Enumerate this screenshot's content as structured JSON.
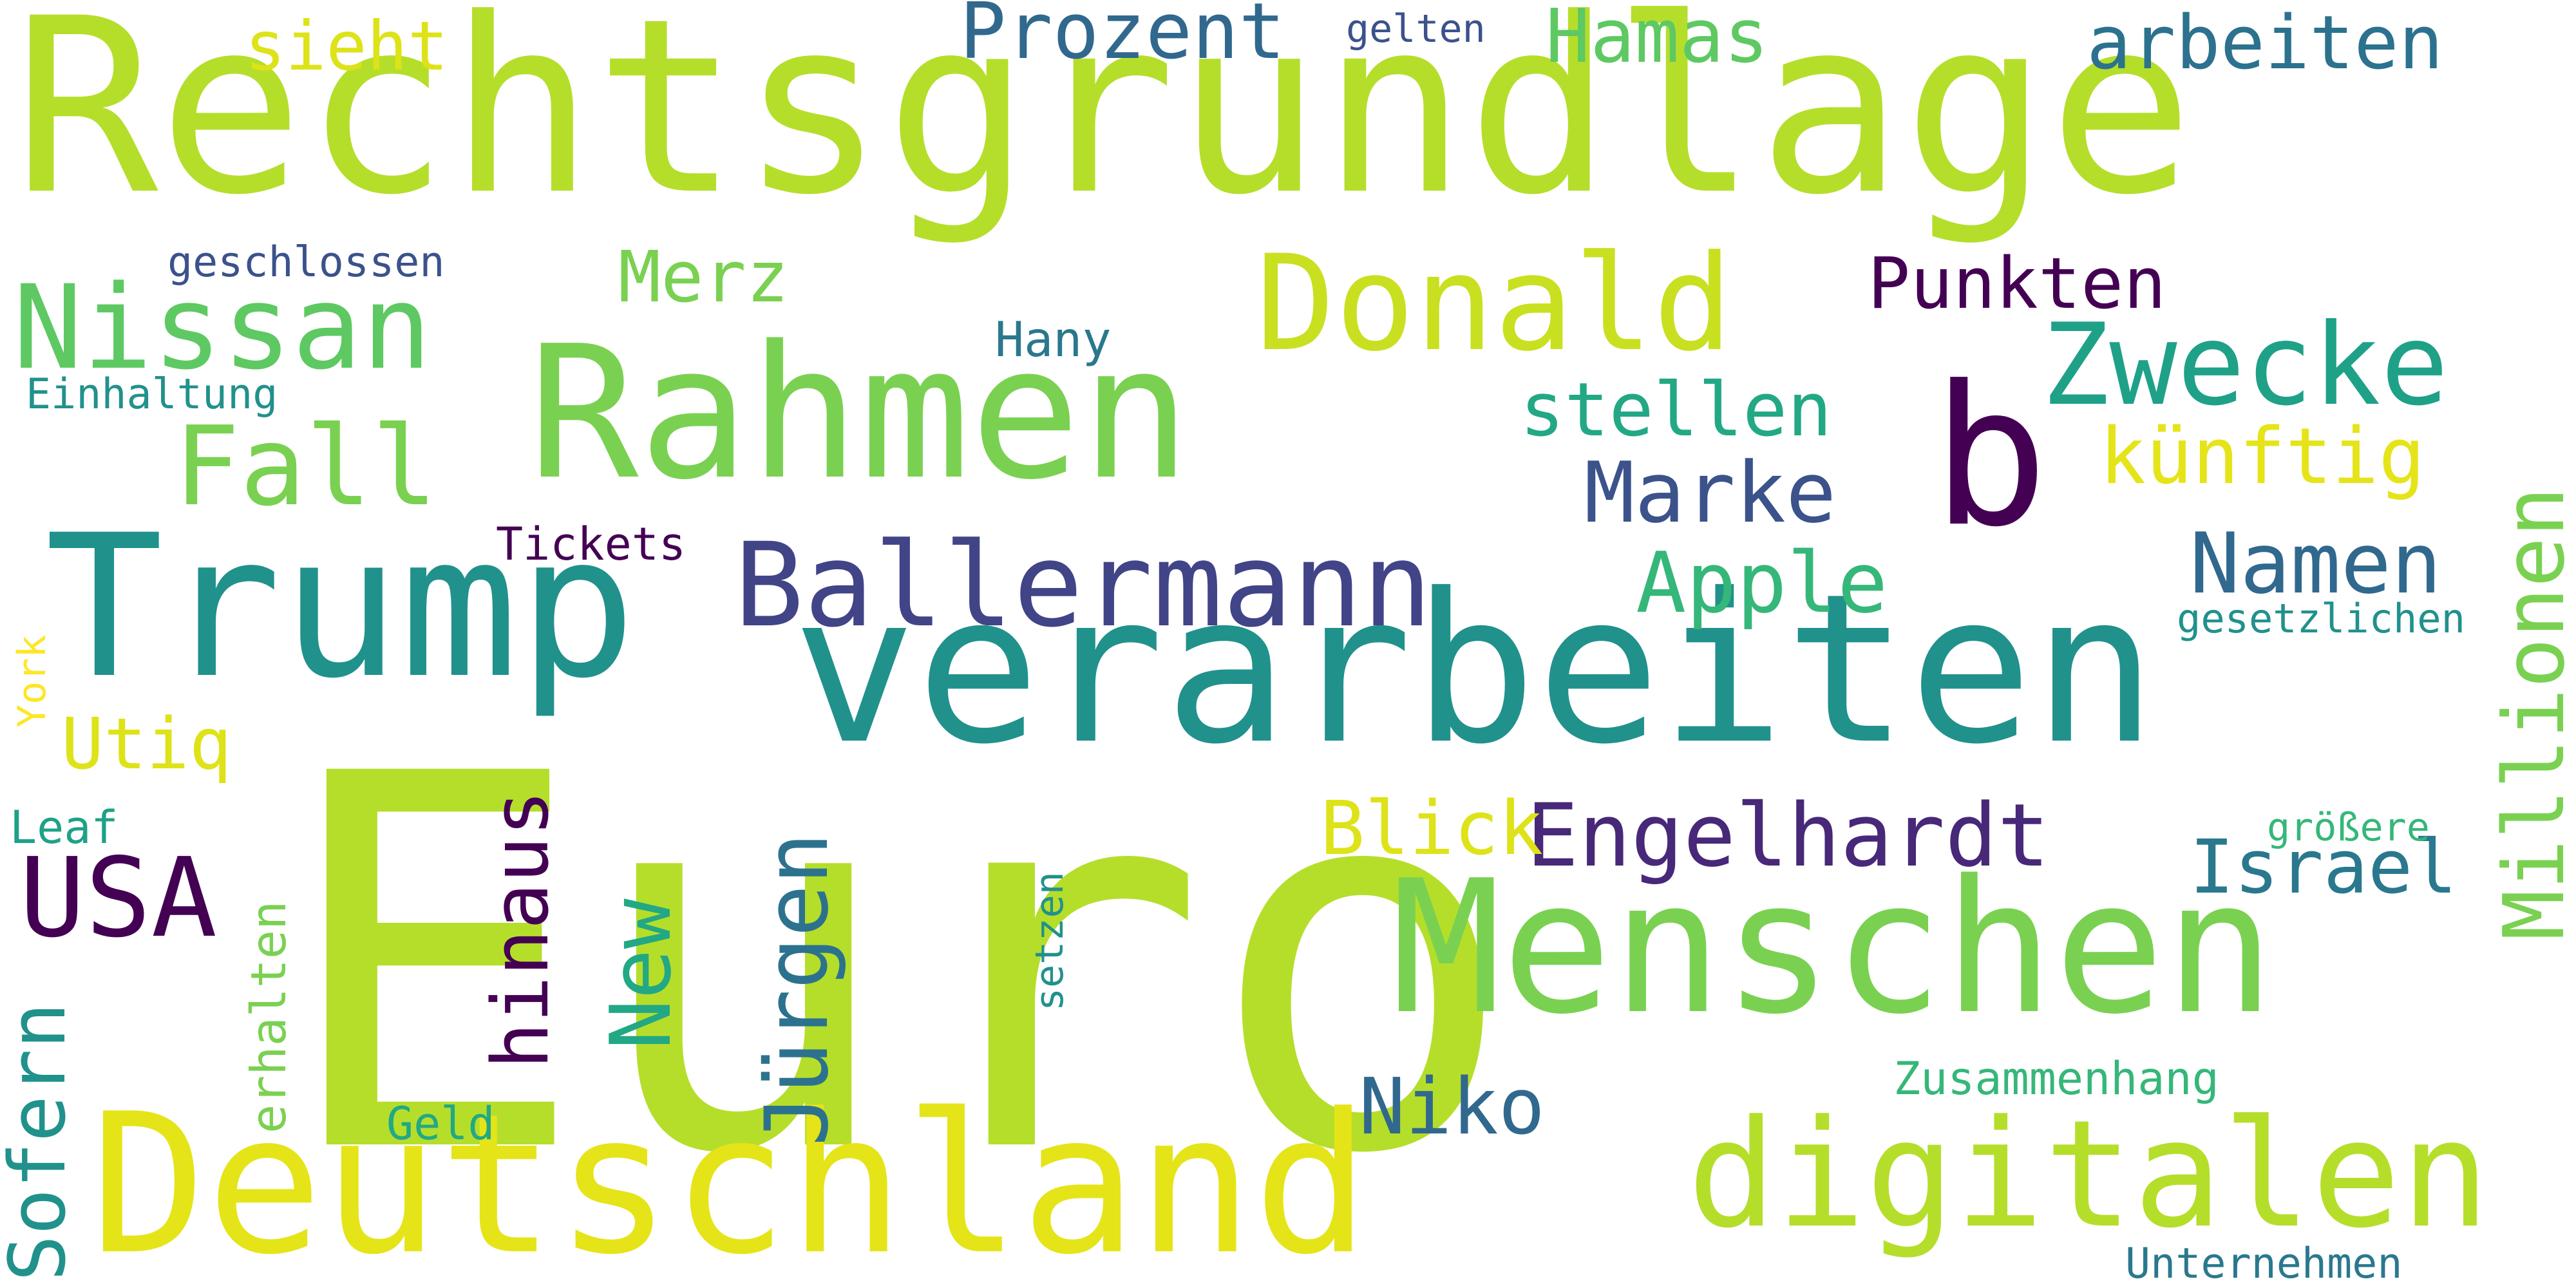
{
  "words": [
    {
      "text": "Rechtsgrundlage",
      "color": "#b5de2b",
      "rotated": false
    },
    {
      "text": "Euro",
      "color": "#b5de2b",
      "rotated": false
    },
    {
      "text": "verarbeiten",
      "color": "#21918c",
      "rotated": false
    },
    {
      "text": "Rahmen",
      "color": "#7ad151",
      "rotated": false
    },
    {
      "text": "Trump",
      "color": "#21918c",
      "rotated": false
    },
    {
      "text": "Deutschland",
      "color": "#e5e419",
      "rotated": false
    },
    {
      "text": "Menschen",
      "color": "#7ad151",
      "rotated": false
    },
    {
      "text": "digitalen",
      "color": "#b5de2b",
      "rotated": false
    },
    {
      "text": "Donald",
      "color": "#c8e020",
      "rotated": false
    },
    {
      "text": "b",
      "color": "#440154",
      "rotated": false
    },
    {
      "text": "Ballermann",
      "color": "#414487",
      "rotated": false
    },
    {
      "text": "Nissan",
      "color": "#5ec962",
      "rotated": false
    },
    {
      "text": "Zwecke",
      "color": "#1fa188",
      "rotated": false
    },
    {
      "text": "Fall",
      "color": "#7ad151",
      "rotated": false
    },
    {
      "text": "USA",
      "color": "#440154",
      "rotated": false
    },
    {
      "text": "Engelhardt",
      "color": "#482878",
      "rotated": false
    },
    {
      "text": "Apple",
      "color": "#35b779",
      "rotated": false
    },
    {
      "text": "Namen",
      "color": "#31688e",
      "rotated": false
    },
    {
      "text": "Marke",
      "color": "#3b528b",
      "rotated": false
    },
    {
      "text": "Israel",
      "color": "#2a788e",
      "rotated": false
    },
    {
      "text": "Niko",
      "color": "#31688e",
      "rotated": false
    },
    {
      "text": "Blick",
      "color": "#dde318",
      "rotated": false
    },
    {
      "text": "künftig",
      "color": "#e5e419",
      "rotated": false
    },
    {
      "text": "stellen",
      "color": "#22a884",
      "rotated": false
    },
    {
      "text": "arbeiten",
      "color": "#2c728e",
      "rotated": false
    },
    {
      "text": "Prozent",
      "color": "#31688e",
      "rotated": false
    },
    {
      "text": "Punkten",
      "color": "#440154",
      "rotated": false
    },
    {
      "text": "Hamas",
      "color": "#5ec962",
      "rotated": false
    },
    {
      "text": "Merz",
      "color": "#7ad151",
      "rotated": false
    },
    {
      "text": "Utiq",
      "color": "#dde318",
      "rotated": false
    },
    {
      "text": "sieht",
      "color": "#dde318",
      "rotated": false
    },
    {
      "text": "Zusammenhang",
      "color": "#35b779",
      "rotated": false
    },
    {
      "text": "Unternehmen",
      "color": "#2a788e",
      "rotated": false
    },
    {
      "text": "Geld",
      "color": "#22a884",
      "rotated": false
    },
    {
      "text": "geschlossen",
      "color": "#3b528b",
      "rotated": false
    },
    {
      "text": "Einhaltung",
      "color": "#21918c",
      "rotated": false
    },
    {
      "text": "Tickets",
      "color": "#440154",
      "rotated": false
    },
    {
      "text": "Hany",
      "color": "#2a788e",
      "rotated": false
    },
    {
      "text": "gelten",
      "color": "#3b528b",
      "rotated": false
    },
    {
      "text": "gesetzlichen",
      "color": "#21918c",
      "rotated": false
    },
    {
      "text": "größere",
      "color": "#35b779",
      "rotated": false
    },
    {
      "text": "Leaf",
      "color": "#1fa188",
      "rotated": false
    },
    {
      "text": "Millionen",
      "color": "#7ad151",
      "rotated": true
    },
    {
      "text": "Jürgen",
      "color": "#2c728e",
      "rotated": true
    },
    {
      "text": "New",
      "color": "#22a884",
      "rotated": true
    },
    {
      "text": "hinaus",
      "color": "#440154",
      "rotated": true
    },
    {
      "text": "Sofern",
      "color": "#21918c",
      "rotated": true
    },
    {
      "text": "erhalten",
      "color": "#7ad151",
      "rotated": true
    },
    {
      "text": "setzen",
      "color": "#21918c",
      "rotated": true
    },
    {
      "text": "York",
      "color": "#fde725",
      "rotated": true
    }
  ]
}
